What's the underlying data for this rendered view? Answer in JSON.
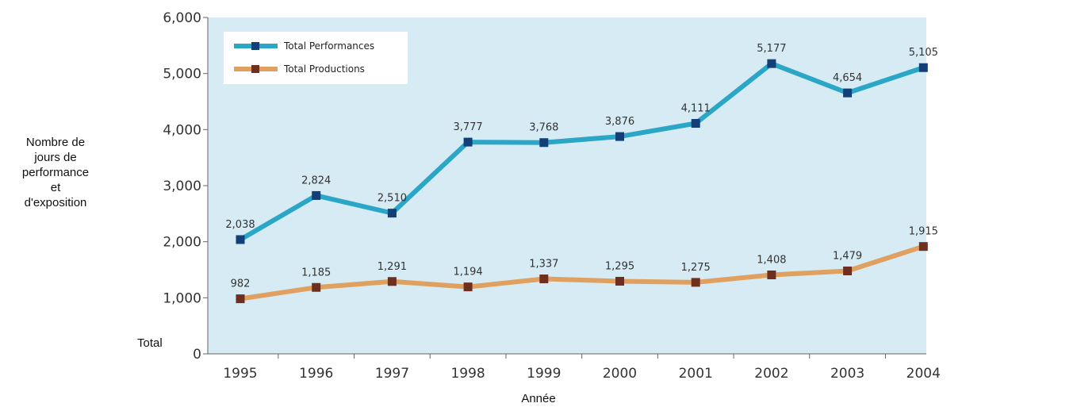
{
  "chart_data": {
    "type": "line",
    "categories": [
      "1995",
      "1996",
      "1997",
      "1998",
      "1999",
      "2000",
      "2001",
      "2002",
      "2003",
      "2004"
    ],
    "series": [
      {
        "name": "Total Performances",
        "color": "#2ba6c6",
        "marker_color": "#133f78",
        "values": [
          2038,
          2824,
          2510,
          3777,
          3768,
          3876,
          4111,
          5177,
          4654,
          5105
        ],
        "labels": [
          "2,038",
          "2,824",
          "2,510",
          "3,777",
          "3,768",
          "3,876",
          "4,111",
          "5,177",
          "4,654",
          "5,105"
        ]
      },
      {
        "name": "Total Productions",
        "color": "#e0a160",
        "marker_color": "#6e2f1f",
        "values": [
          982,
          1185,
          1291,
          1194,
          1337,
          1295,
          1275,
          1408,
          1479,
          1915
        ],
        "labels": [
          "982",
          "1,185",
          "1,291",
          "1,194",
          "1,337",
          "1,295",
          "1,275",
          "1,408",
          "1,479",
          "1,915"
        ]
      }
    ],
    "yticks": [
      0,
      1000,
      2000,
      3000,
      4000,
      5000,
      6000
    ],
    "ytick_labels": [
      "0",
      "1,000",
      "2,000",
      "3,000",
      "4,000",
      "5,000",
      "6,000"
    ],
    "ylim": [
      0,
      6000
    ],
    "ylabel_lines": [
      "Nombre de",
      "jours de",
      "performance",
      "et",
      "d'exposition"
    ],
    "ylabel_bottom": "Total",
    "xlabel": "Année",
    "plot_background": "#d6ebf3",
    "legend_position": "top-left",
    "grid": false
  }
}
